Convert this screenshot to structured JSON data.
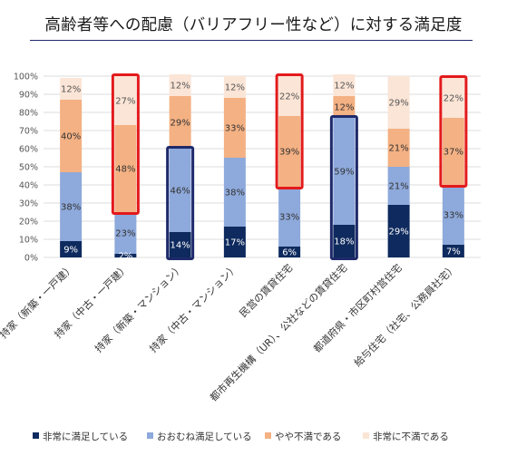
{
  "title": "高齢者等への配慮（バリアフリー性など）に対する満足度",
  "colors": {
    "very_satisfied": "#0e2a5e",
    "mostly_satisfied": "#8ea9db",
    "somewhat_dissatisfied": "#f4b183",
    "very_dissatisfied": "#fbe5d6",
    "highlight_red": "#e31a1c",
    "highlight_navy": "#1f2a6b"
  },
  "chart_data": {
    "type": "bar",
    "stacked": true,
    "percent": true,
    "title": "高齢者等への配慮（バリアフリー性など）に対する満足度",
    "categories": [
      "持家（新築・一戸建）",
      "持家（中古・一戸建）",
      "持家（新築・マンション）",
      "持家（中古・マンション）",
      "民営の賃貸住宅",
      "都市再生機構（UR）、公社などの賃貸住宅",
      "都道府県・市区町村営住宅",
      "給与住宅（社宅、公務員社宅）"
    ],
    "series": [
      {
        "name": "非常に満足している",
        "values": [
          9,
          2,
          14,
          17,
          6,
          18,
          29,
          7
        ]
      },
      {
        "name": "おおむね満足している",
        "values": [
          38,
          23,
          46,
          38,
          33,
          59,
          21,
          33
        ]
      },
      {
        "name": "やや不満である",
        "values": [
          40,
          48,
          29,
          33,
          39,
          12,
          21,
          37
        ]
      },
      {
        "name": "非常に不満である",
        "values": [
          12,
          27,
          12,
          12,
          22,
          12,
          29,
          22
        ]
      }
    ],
    "ylim": [
      0,
      100
    ],
    "yticks": [
      "0%",
      "10%",
      "20%",
      "30%",
      "40%",
      "50%",
      "60%",
      "70%",
      "80%",
      "90%",
      "100%"
    ],
    "grid": true,
    "legend_position": "bottom",
    "highlights": [
      {
        "category_index": 1,
        "series": [
          2,
          3
        ],
        "color": "red"
      },
      {
        "category_index": 4,
        "series": [
          2,
          3
        ],
        "color": "red"
      },
      {
        "category_index": 7,
        "series": [
          2,
          3
        ],
        "color": "red"
      },
      {
        "category_index": 2,
        "series": [
          0,
          1
        ],
        "color": "navy"
      },
      {
        "category_index": 5,
        "series": [
          0,
          1
        ],
        "color": "navy"
      }
    ]
  }
}
